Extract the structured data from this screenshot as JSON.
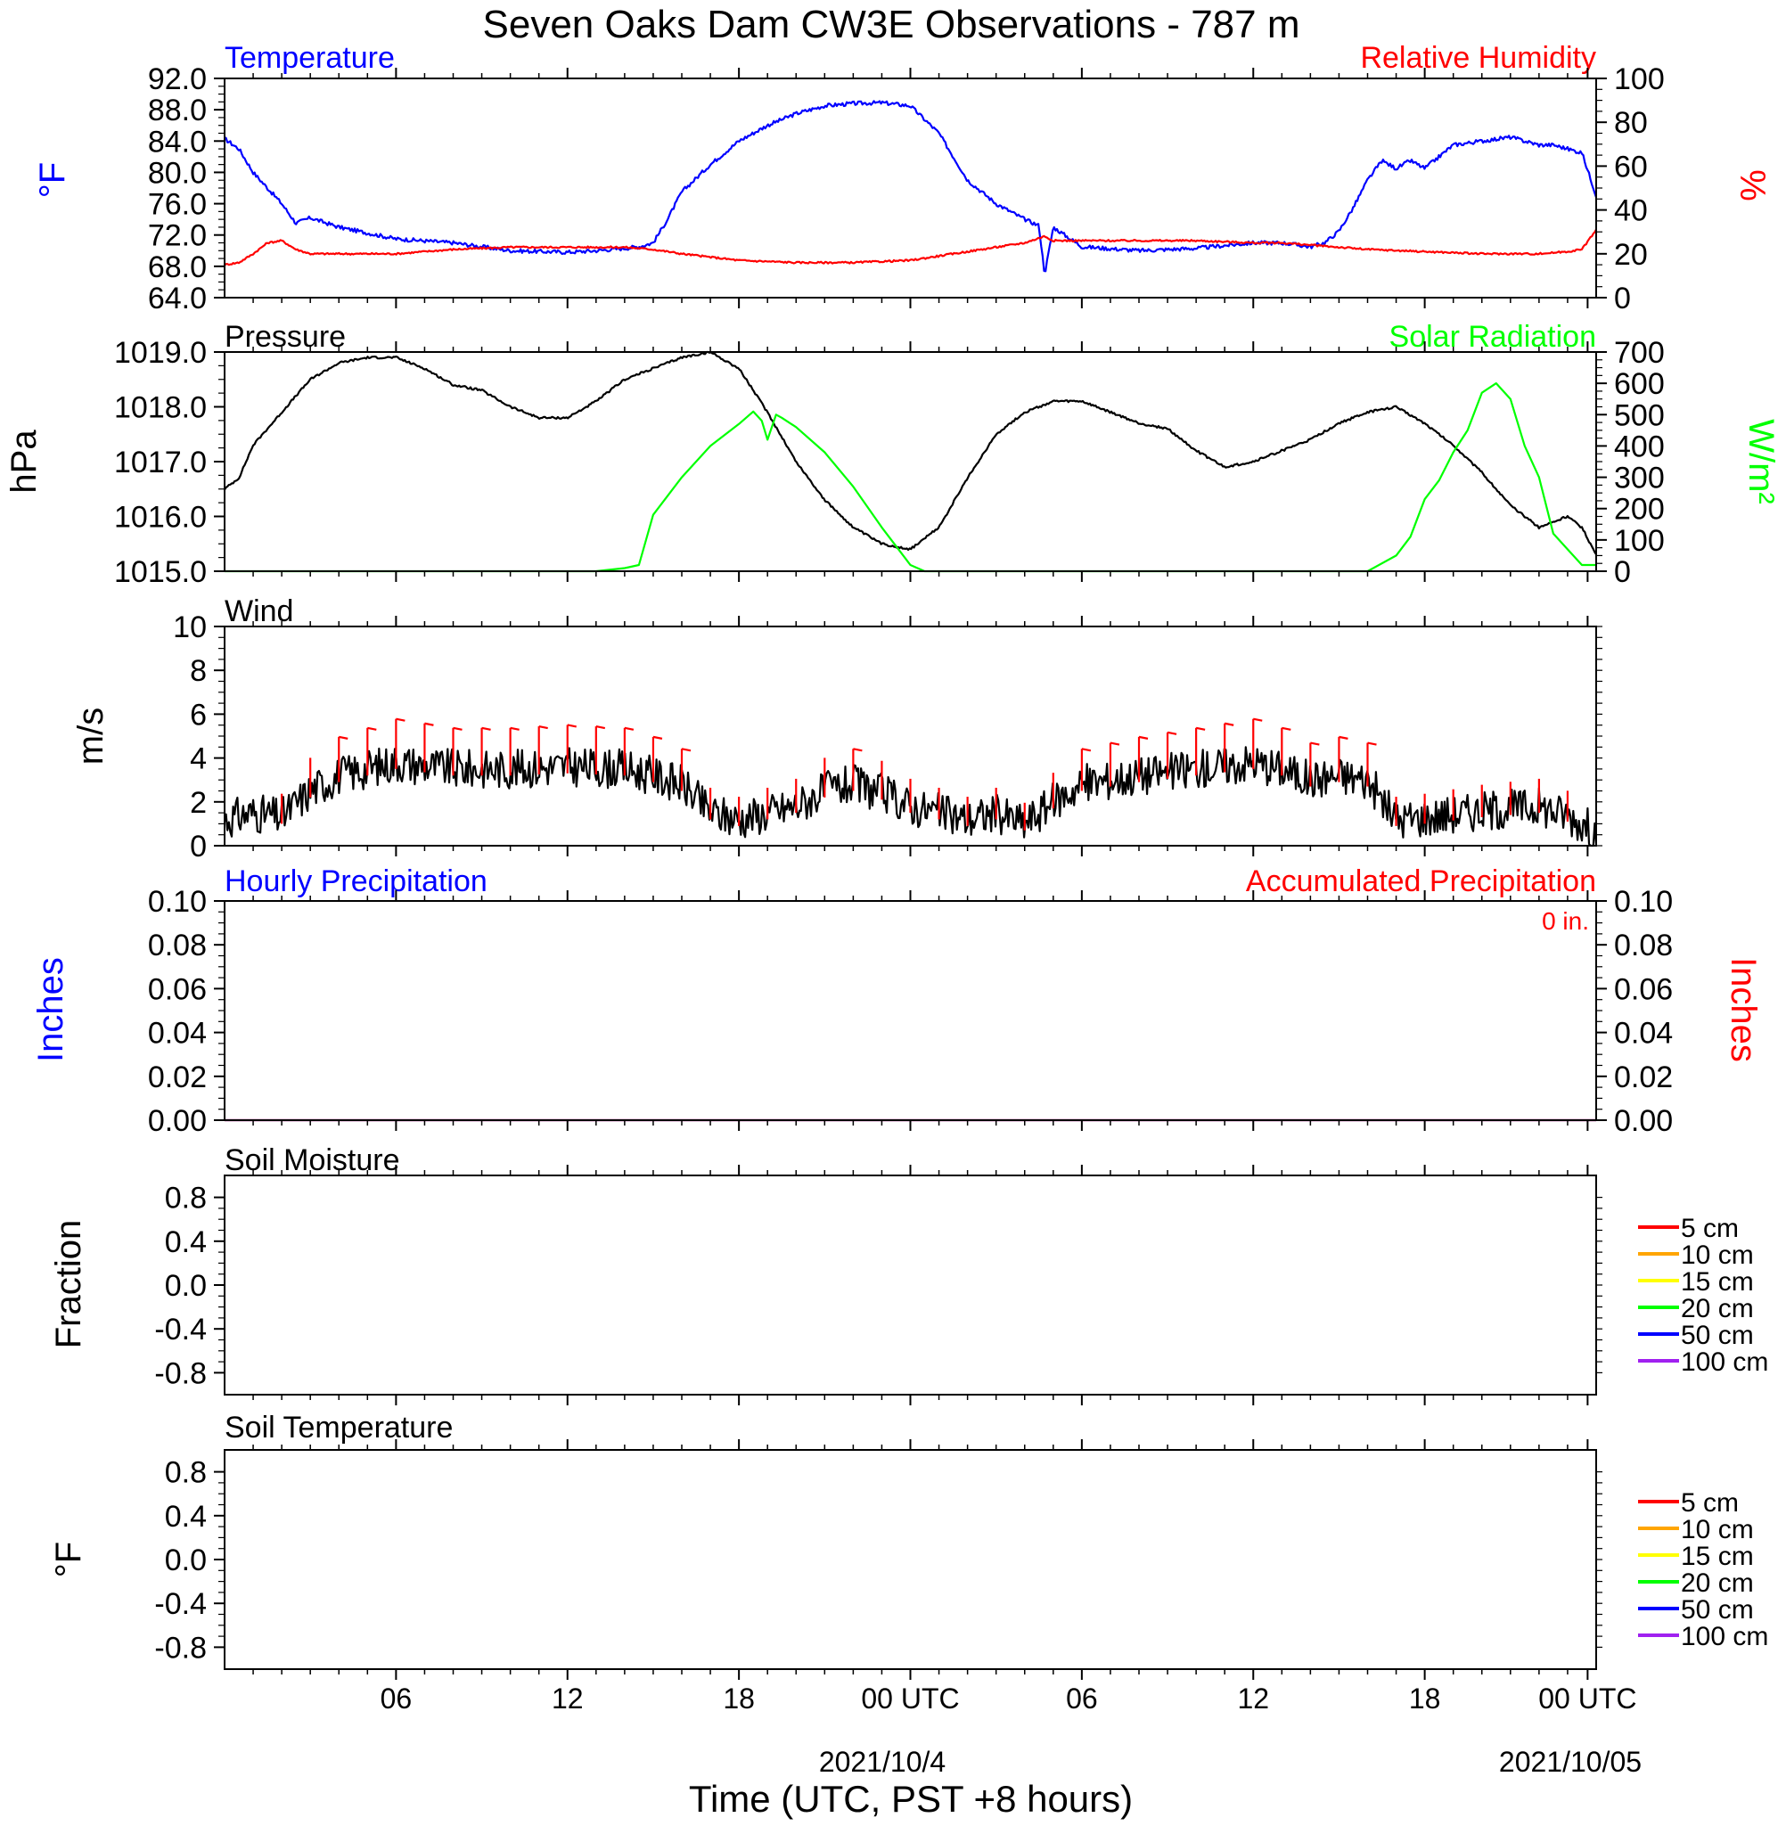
{
  "title": "Seven Oaks Dam CW3E Observations - 787 m",
  "x_axis": {
    "label": "Time (UTC, PST +8 hours)",
    "ticks": [
      "06",
      "12",
      "18",
      "00 UTC",
      "06",
      "12",
      "18",
      "00 UTC"
    ],
    "dates": [
      "2021/10/4",
      "2021/10/05"
    ]
  },
  "colors": {
    "temperature": "#0000ff",
    "humidity": "#ff0000",
    "pressure": "#000000",
    "solar": "#00ff00",
    "wind": "#000000",
    "barbs": "#ff0000"
  },
  "chart_data": [
    {
      "type": "line",
      "title_left": "Temperature",
      "title_right": "Relative Humidity",
      "ylabel_left": "°F",
      "ylabel_right": "%",
      "ylim_left": [
        64,
        92
      ],
      "ylim_right": [
        0,
        100
      ],
      "yticks_left": [
        "92.0",
        "88.0",
        "84.0",
        "80.0",
        "76.0",
        "72.0",
        "68.0",
        "64.0"
      ],
      "yticks_right": [
        "100",
        "80",
        "60",
        "40",
        "20",
        "0"
      ],
      "series": [
        {
          "name": "Temperature",
          "axis": "left",
          "x": [
            0,
            0.5,
            1,
            1.5,
            2,
            2.5,
            3,
            4,
            6,
            8,
            10,
            12,
            13,
            14,
            14.5,
            15,
            15.5,
            16,
            17,
            18,
            19,
            20,
            21,
            22,
            23,
            24,
            25,
            26,
            27,
            28,
            28.5,
            28.7,
            29,
            30,
            32,
            34,
            36,
            37,
            38,
            38.5,
            39,
            39.5,
            40,
            40.5,
            41,
            41.5,
            42,
            43,
            44,
            45,
            46,
            46.5,
            47,
            47.5,
            48
          ],
          "y": [
            84.3,
            83,
            80,
            78,
            76,
            73.5,
            74.2,
            73,
            71.5,
            71,
            70,
            69.8,
            70,
            70.3,
            70.5,
            71,
            74,
            77.5,
            81,
            84,
            86,
            87.5,
            88.5,
            88.8,
            88.9,
            88.5,
            85,
            79,
            76,
            74,
            73.2,
            67,
            73,
            70.5,
            70,
            70.3,
            71,
            71,
            70.5,
            71,
            72.5,
            75.5,
            79,
            81.5,
            80.5,
            81.5,
            80.5,
            83.5,
            84,
            84.5,
            83.5,
            83.5,
            83,
            82.5,
            77
          ]
        },
        {
          "name": "Relative Humidity",
          "axis": "right",
          "x": [
            0,
            0.5,
            1,
            1.5,
            2,
            2.5,
            3,
            4,
            6,
            8,
            10,
            12,
            14,
            15,
            16,
            18,
            20,
            22,
            24,
            26,
            28,
            28.7,
            29,
            30,
            32,
            34,
            36,
            37,
            38,
            40,
            42,
            44,
            46,
            47,
            47.5,
            48
          ],
          "y": [
            15,
            16,
            20,
            25,
            26,
            22,
            20,
            20,
            20,
            22,
            23,
            23,
            23,
            22,
            20,
            17,
            16,
            16,
            17,
            21,
            25,
            28,
            26,
            26,
            26,
            26,
            25,
            25,
            24,
            22,
            21,
            20,
            20,
            21,
            22,
            31
          ]
        }
      ]
    },
    {
      "type": "line",
      "title_left": "Pressure",
      "title_right": "Solar Radiation",
      "ylabel_left": "hPa",
      "ylabel_right": "W/m²",
      "ylim_left": [
        1015,
        1019
      ],
      "ylim_right": [
        0,
        700
      ],
      "yticks_left": [
        "1019.0",
        "1018.0",
        "1017.0",
        "1016.0",
        "1015.0"
      ],
      "yticks_right": [
        "700",
        "600",
        "500",
        "400",
        "300",
        "200",
        "100",
        "0"
      ],
      "series": [
        {
          "name": "Pressure",
          "axis": "left",
          "x": [
            0,
            0.5,
            1,
            2,
            3,
            4,
            5,
            6,
            7,
            8,
            9,
            10,
            11,
            12,
            13,
            14,
            15,
            16,
            17,
            18,
            19,
            20,
            21,
            22,
            23,
            24,
            25,
            26,
            27,
            28,
            29,
            30,
            31,
            32,
            33,
            34,
            35,
            36,
            37,
            38,
            39,
            40,
            41,
            42,
            43,
            44,
            45,
            46,
            46.5,
            47,
            47.5,
            48
          ],
          "y": [
            1016.5,
            1016.7,
            1017.3,
            1017.9,
            1018.5,
            1018.8,
            1018.9,
            1018.9,
            1018.7,
            1018.4,
            1018.3,
            1018.0,
            1017.8,
            1017.8,
            1018.1,
            1018.5,
            1018.7,
            1018.9,
            1019.0,
            1018.7,
            1017.9,
            1017.0,
            1016.3,
            1015.8,
            1015.5,
            1015.4,
            1015.8,
            1016.7,
            1017.5,
            1017.9,
            1018.1,
            1018.1,
            1017.9,
            1017.7,
            1017.6,
            1017.2,
            1016.9,
            1017.0,
            1017.2,
            1017.4,
            1017.7,
            1017.9,
            1018.0,
            1017.7,
            1017.3,
            1016.8,
            1016.2,
            1015.8,
            1015.9,
            1016.0,
            1015.8,
            1015.3
          ]
        },
        {
          "name": "Solar Radiation",
          "axis": "right",
          "x": [
            0,
            13,
            14,
            14.5,
            15,
            16,
            17,
            18,
            18.5,
            18.8,
            19,
            19.3,
            19.5,
            20,
            21,
            22,
            23,
            23.5,
            24,
            24.5,
            40,
            41,
            41.5,
            42,
            42.5,
            43,
            43.5,
            44,
            44.5,
            45,
            45.5,
            46,
            46.5,
            47,
            47.5,
            48
          ],
          "y": [
            0,
            0,
            10,
            20,
            180,
            300,
            400,
            470,
            510,
            480,
            420,
            500,
            490,
            460,
            380,
            270,
            140,
            80,
            20,
            0,
            0,
            50,
            110,
            230,
            290,
            380,
            450,
            570,
            600,
            550,
            400,
            300,
            120,
            70,
            20,
            20
          ]
        }
      ]
    },
    {
      "type": "line",
      "title_left": "Wind",
      "ylabel_left": "m/s",
      "ylim_left": [
        0,
        10
      ],
      "yticks_left": [
        "10",
        "8",
        "6",
        "4",
        "2",
        "0"
      ],
      "series": [
        {
          "name": "Wind",
          "axis": "left",
          "x": [
            0,
            1,
            2,
            3,
            4,
            6,
            8,
            10,
            12,
            14,
            15,
            16,
            17,
            18,
            20,
            21,
            22,
            23,
            24,
            25,
            26,
            27,
            28,
            29,
            30,
            32,
            34,
            36,
            37,
            38,
            39,
            40,
            41,
            42,
            44,
            46,
            47,
            48
          ],
          "y": [
            1.2,
            1.5,
            1.3,
            2.5,
            3.2,
            3.8,
            3.5,
            3.5,
            3.6,
            3.5,
            3.2,
            2.8,
            1.5,
            1.2,
            1.8,
            2.5,
            2.8,
            2.4,
            1.8,
            1.5,
            1.2,
            1.5,
            1.0,
            2.0,
            2.8,
            3.2,
            3.5,
            3.8,
            3.5,
            3.0,
            3.2,
            3.0,
            1.2,
            1.3,
            1.6,
            1.8,
            1.4,
            0.6
          ]
        }
      ]
    },
    {
      "type": "line",
      "title_left": "Hourly Precipitation",
      "title_right": "Accumulated Precipitation",
      "annotation": "0 in.",
      "ylabel_left": "Inches",
      "ylabel_right": "Inches",
      "ylim_left": [
        0,
        0.1
      ],
      "ylim_right": [
        0,
        0.1
      ],
      "yticks_left": [
        "0.10",
        "0.08",
        "0.06",
        "0.04",
        "0.02",
        "0.00"
      ],
      "yticks_right": [
        "0.10",
        "0.08",
        "0.06",
        "0.04",
        "0.02",
        "0.00"
      ],
      "series": [
        {
          "name": "Hourly Precipitation",
          "axis": "left",
          "x": [
            0,
            48
          ],
          "y": [
            0,
            0
          ]
        },
        {
          "name": "Accumulated Precipitation",
          "axis": "right",
          "x": [
            0,
            48
          ],
          "y": [
            0,
            0
          ]
        }
      ]
    },
    {
      "type": "line",
      "title_left": "Soil Moisture",
      "ylabel_left": "Fraction",
      "ylim_left": [
        -1,
        1
      ],
      "yticks_left": [
        "0.8",
        "0.4",
        "0.0",
        "-0.4",
        "-0.8"
      ],
      "legend": [
        {
          "label": "5 cm",
          "color": "#ff0000"
        },
        {
          "label": "10 cm",
          "color": "#ffa500"
        },
        {
          "label": "15 cm",
          "color": "#ffff00"
        },
        {
          "label": "20 cm",
          "color": "#00ff00"
        },
        {
          "label": "50 cm",
          "color": "#0000ff"
        },
        {
          "label": "100 cm",
          "color": "#a020f0"
        }
      ],
      "series": []
    },
    {
      "type": "line",
      "title_left": "Soil Temperature",
      "ylabel_left": "°F",
      "ylim_left": [
        -1,
        1
      ],
      "yticks_left": [
        "0.8",
        "0.4",
        "0.0",
        "-0.4",
        "-0.8"
      ],
      "legend": [
        {
          "label": "5 cm",
          "color": "#ff0000"
        },
        {
          "label": "10 cm",
          "color": "#ffa500"
        },
        {
          "label": "15 cm",
          "color": "#ffff00"
        },
        {
          "label": "20 cm",
          "color": "#00ff00"
        },
        {
          "label": "50 cm",
          "color": "#0000ff"
        },
        {
          "label": "100 cm",
          "color": "#a020f0"
        }
      ],
      "series": []
    }
  ]
}
